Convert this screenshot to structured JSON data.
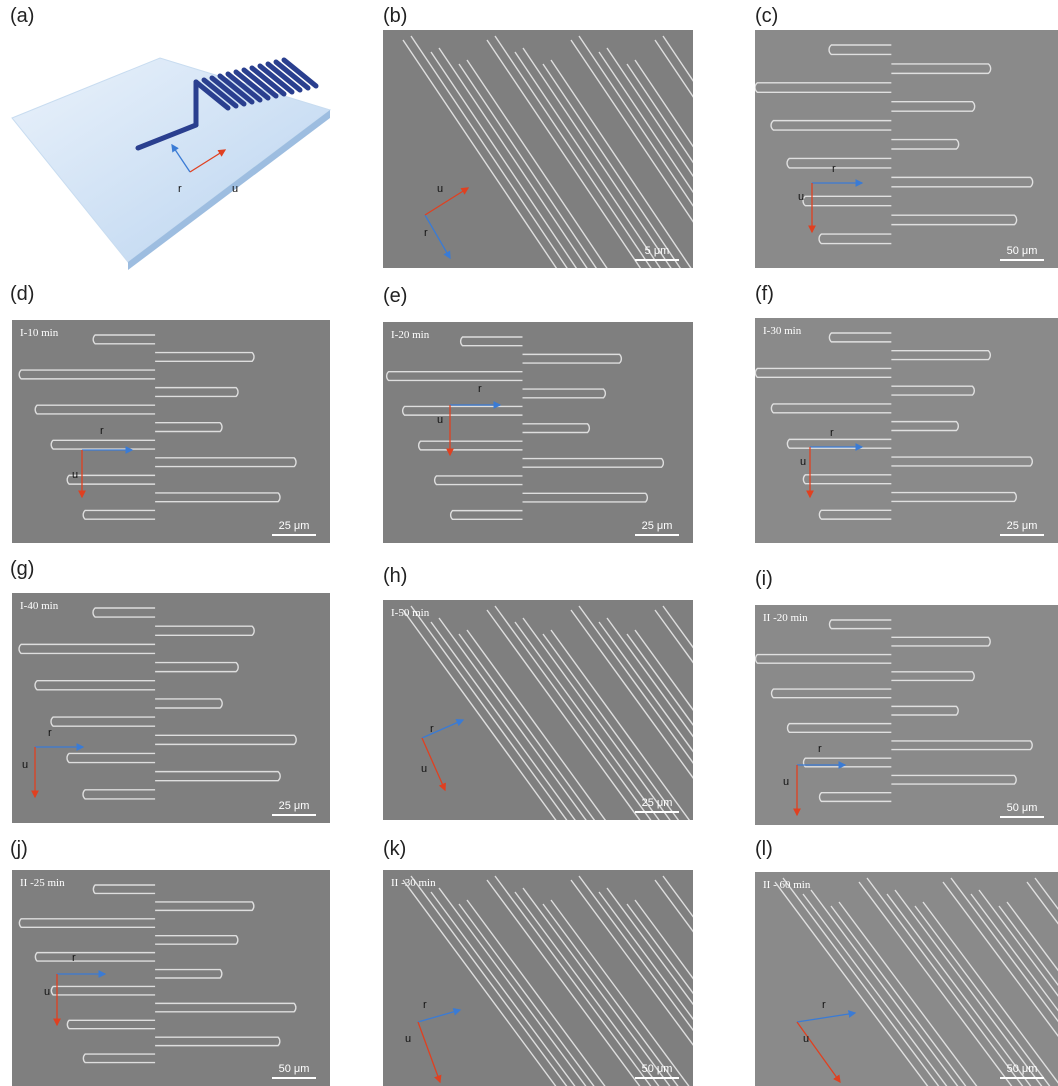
{
  "panels": [
    {
      "label": "(a)",
      "r": "r",
      "u": "u"
    },
    {
      "label": "(b)",
      "r": "r",
      "u": "u",
      "scale": "5 μm"
    },
    {
      "label": "(c)",
      "r": "r",
      "u": "u",
      "scale": "50 μm"
    },
    {
      "label": "(d)",
      "time": "I-10 min",
      "r": "r",
      "u": "u",
      "scale": "25 μm"
    },
    {
      "label": "(e)",
      "time": "I-20 min",
      "r": "r",
      "u": "u",
      "scale": "25 μm"
    },
    {
      "label": "(f)",
      "time": "I-30 min",
      "r": "r",
      "u": "u",
      "scale": "25 μm"
    },
    {
      "label": "(g)",
      "time": "I-40 min",
      "r": "r",
      "u": "u",
      "scale": "25 μm"
    },
    {
      "label": "(h)",
      "time": "I-50 min",
      "r": "r",
      "u": "u",
      "scale": "25 μm"
    },
    {
      "label": "(i)",
      "time": "II -20 min",
      "r": "r",
      "u": "u",
      "scale": "50 μm"
    },
    {
      "label": "(j)",
      "time": "II -25 min",
      "r": "r",
      "u": "u",
      "scale": "50 μm"
    },
    {
      "label": "(k)",
      "time": "II -30 min",
      "r": "r",
      "u": "u",
      "scale": "50 μm"
    },
    {
      "label": "(l)",
      "time": "II - 60 min",
      "r": "r",
      "u": "u",
      "scale": "50 μm"
    }
  ]
}
